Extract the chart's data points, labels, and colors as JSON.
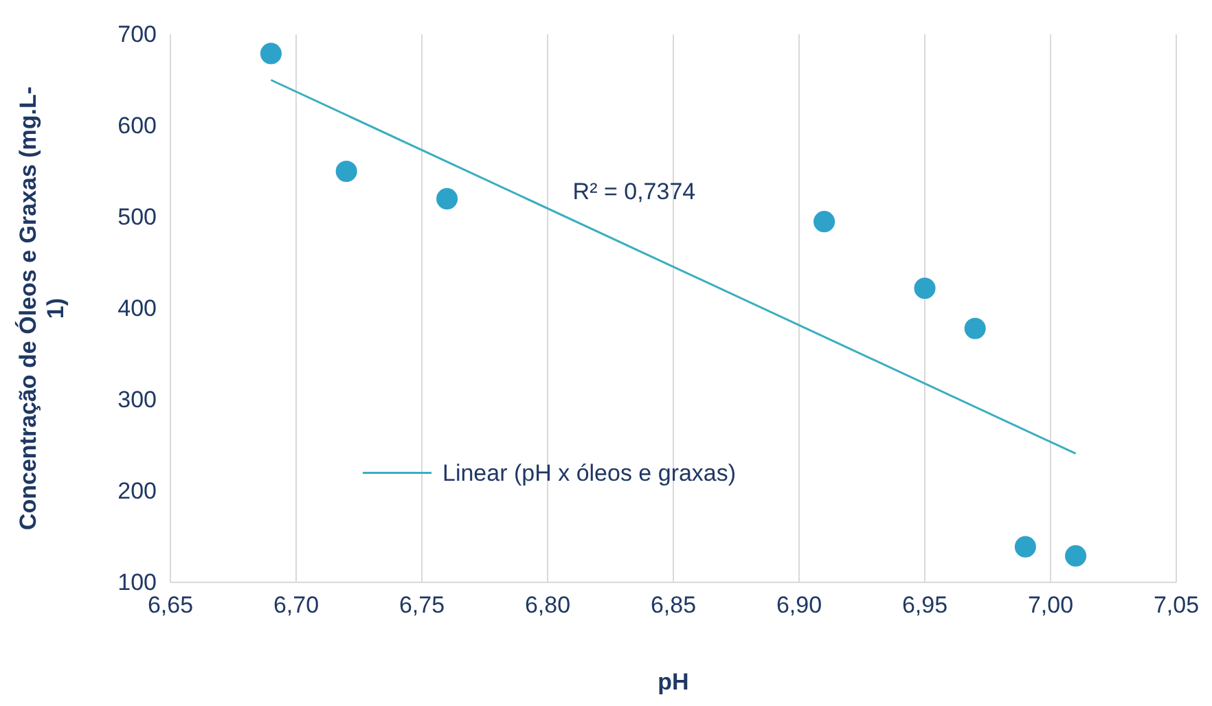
{
  "chart_data": {
    "type": "scatter",
    "xlabel": "pH",
    "ylabel": "Concentração de Óleos e Graxas (mg.L-1)",
    "xlim": [
      6.65,
      7.05
    ],
    "xticks": [
      {
        "value": 6.65,
        "label": "6,65"
      },
      {
        "value": 6.7,
        "label": "6,70"
      },
      {
        "value": 6.75,
        "label": "6,75"
      },
      {
        "value": 6.8,
        "label": "6,80"
      },
      {
        "value": 6.85,
        "label": "6,85"
      },
      {
        "value": 6.9,
        "label": "6,90"
      },
      {
        "value": 6.95,
        "label": "6,95"
      },
      {
        "value": 7.0,
        "label": "7,00"
      },
      {
        "value": 7.05,
        "label": "7,05"
      }
    ],
    "ylim": [
      100,
      700
    ],
    "yticks": [
      100,
      200,
      300,
      400,
      500,
      600,
      700
    ],
    "grid": "x",
    "legend": "bottom left",
    "annotations": [
      "R² = 0,7374"
    ],
    "series": [
      {
        "marker": "circle",
        "color": "#2ea3c9",
        "x": [
          6.69,
          6.72,
          6.76,
          6.91,
          6.95,
          6.97,
          6.99,
          7.01
        ],
        "values": [
          679,
          550,
          520,
          495,
          422,
          378,
          139,
          129
        ]
      },
      {
        "type": "line",
        "name": "Linear (pH x óleos e graxas)",
        "color": "#3aaec0",
        "line_style": "solid",
        "x": [
          6.69,
          7.01
        ],
        "values": [
          650,
          241
        ]
      }
    ]
  }
}
